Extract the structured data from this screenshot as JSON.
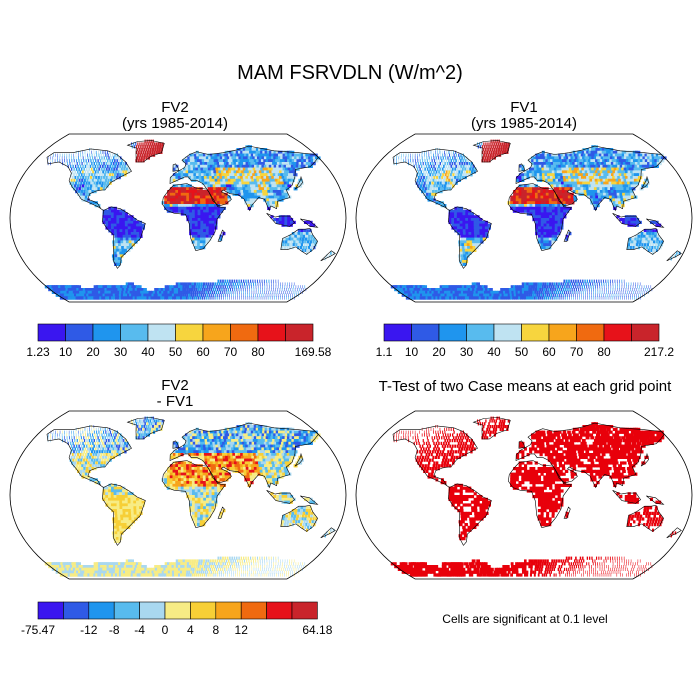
{
  "title": "MAM FSRVDLN (W/m^2)",
  "panels": [
    {
      "id": "fv2",
      "title_line1": "FV2",
      "title_line2": "(yrs 1985-2014)",
      "colorbar": {
        "colors": [
          "#3a16f0",
          "#2f5ae6",
          "#1f95ee",
          "#58bbee",
          "#bfe3f2",
          "#f7d53e",
          "#f7a51c",
          "#f06a10",
          "#e7121a",
          "#c9242b"
        ],
        "labels": [
          "1.23",
          "10",
          "20",
          "30",
          "40",
          "50",
          "60",
          "70",
          "80",
          "169.58"
        ]
      }
    },
    {
      "id": "fv1",
      "title_line1": "FV1",
      "title_line2": "(yrs 1985-2014)",
      "colorbar": {
        "colors": [
          "#3a16f0",
          "#2f5ae6",
          "#1f95ee",
          "#58bbee",
          "#bfe3f2",
          "#f7d53e",
          "#f7a51c",
          "#f06a10",
          "#e7121a",
          "#c9242b"
        ],
        "labels": [
          "1.1",
          "10",
          "20",
          "30",
          "40",
          "50",
          "60",
          "70",
          "80",
          "217.2"
        ]
      }
    },
    {
      "id": "diff",
      "title_line1": "FV2",
      "title_line2": "- FV1",
      "colorbar": {
        "colors": [
          "#3a16f0",
          "#2f5ae6",
          "#1f95ee",
          "#58bbee",
          "#a9d8f0",
          "#f7ec85",
          "#f7cf36",
          "#f7a51c",
          "#f06a10",
          "#e7121a",
          "#c9242b"
        ],
        "labels": [
          "-75.47",
          "",
          "-12",
          "-8",
          "-4",
          "0",
          "4",
          "8",
          "12",
          "",
          "64.18"
        ]
      }
    },
    {
      "id": "ttest",
      "title": "T-Test of two Case means at each grid point",
      "note": "Cells are significant at 0.1 level",
      "color": "#e8000b"
    }
  ]
}
